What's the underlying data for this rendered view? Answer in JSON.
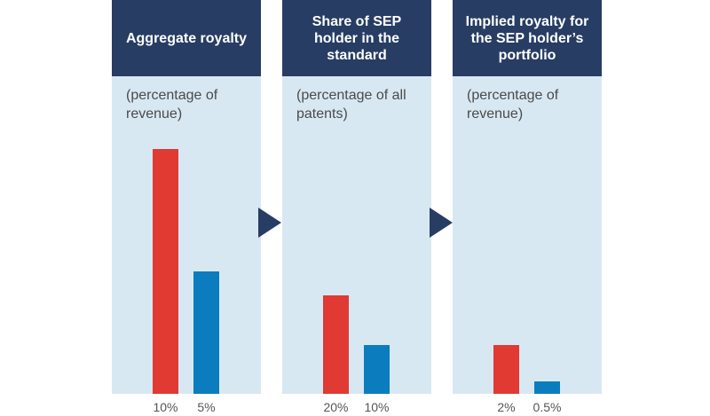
{
  "chart_data": [
    {
      "type": "bar",
      "title": "Aggregate royalty",
      "ylabel": "(percentage of revenue)",
      "categories": [
        "10%",
        "5%"
      ],
      "values": [
        10,
        5
      ],
      "ylim": [
        0,
        11
      ],
      "colors": [
        "#e03a33",
        "#0b7dbf"
      ]
    },
    {
      "type": "bar",
      "title": "Share of SEP holder in the standard",
      "ylabel": "(percentage of all patents)",
      "categories": [
        "20%",
        "10%"
      ],
      "values": [
        20,
        10
      ],
      "ylim": [
        0,
        55
      ],
      "colors": [
        "#e03a33",
        "#0b7dbf"
      ]
    },
    {
      "type": "bar",
      "title": "Implied royalty for the SEP holder’s portfolio",
      "ylabel": "(percentage of revenue)",
      "categories": [
        "2%",
        "0.5%"
      ],
      "values": [
        2,
        0.5
      ],
      "ylim": [
        0,
        11
      ],
      "colors": [
        "#e03a33",
        "#0b7dbf"
      ]
    }
  ],
  "colors": {
    "header_bg": "#273d63",
    "panel_bg": "#d8e8f3",
    "arrow": "#273d63"
  }
}
